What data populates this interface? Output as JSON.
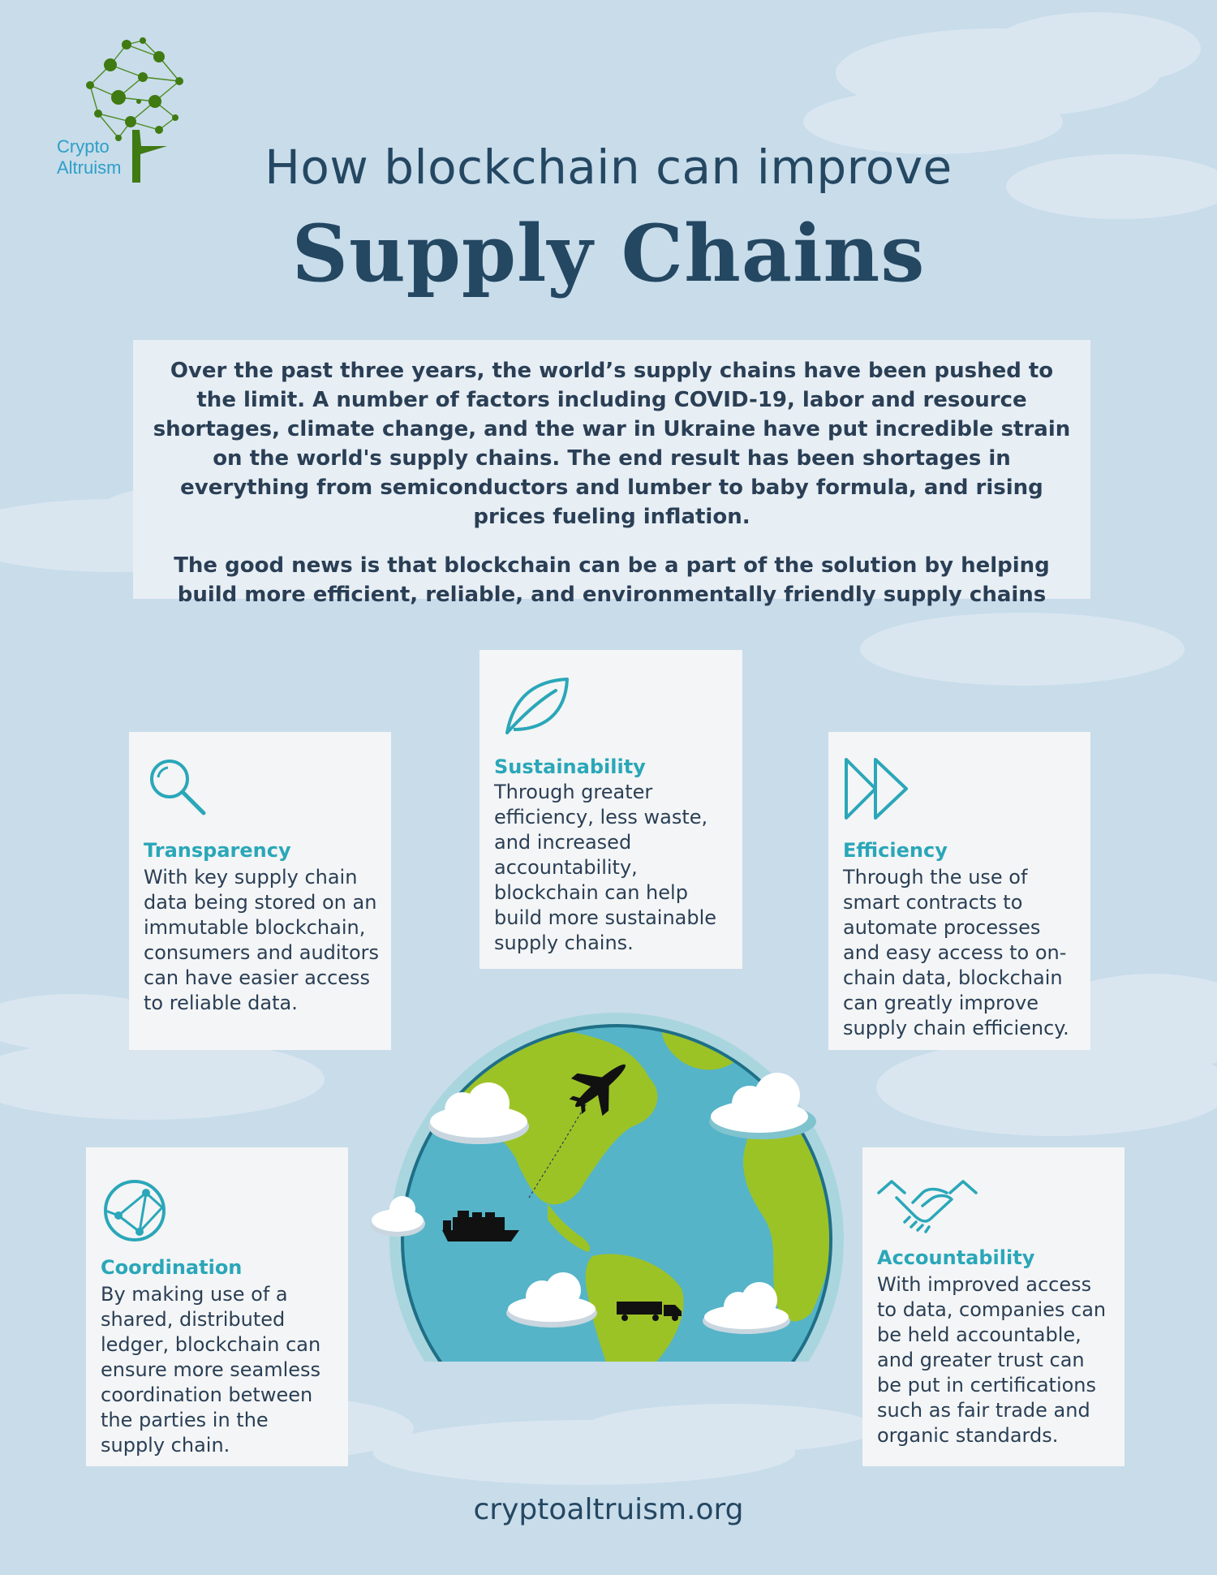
{
  "logo": {
    "line1": "Crypto",
    "line2": "Altruism"
  },
  "header": {
    "subtitle": "How blockchain can improve",
    "title": "Supply Chains"
  },
  "intro": {
    "paragraph1": "Over the past three years, the world’s supply chains have been pushed to the limit. A number of factors including COVID-19, labor and resource shortages, climate change, and the war in Ukraine have put incredible strain on the world's supply chains. The end result has been shortages in everything from semiconductors and lumber to baby formula, and rising prices fueling inflation.",
    "paragraph2": "The good news is that blockchain can be a part of the solution by helping build more efficient, reliable, and environmentally friendly supply chains"
  },
  "cards": {
    "transparency": {
      "icon": "magnifier-icon",
      "title": "Transparency",
      "body": "With key supply chain data being stored on an immutable blockchain, consumers and auditors can have easier access to reliable data."
    },
    "sustainability": {
      "icon": "leaf-icon",
      "title": "Sustainability",
      "body": "Through greater efficiency, less waste, and increased accountability, blockchain can help build more sustainable supply chains."
    },
    "efficiency": {
      "icon": "fast-forward-icon",
      "title": "Efficiency",
      "body": "Through the use of smart contracts to automate processes and easy access to on-chain data, blockchain can greatly improve supply chain efficiency."
    },
    "coordination": {
      "icon": "network-globe-icon",
      "title": "Coordination",
      "body": "By making use of a shared, distributed ledger, blockchain can ensure more seamless coordination between the parties in the supply chain."
    },
    "accountability": {
      "icon": "handshake-icon",
      "title": "Accountability",
      "body": "With improved access to data, companies can be held accountable, and greater trust can be put in certifications such as fair trade and organic standards."
    }
  },
  "footer": {
    "url": "cryptoaltruism.org"
  },
  "colors": {
    "background": "#c8dcea",
    "navy": "#244762",
    "teal": "#2aa7b9",
    "card": "#f4f5f6",
    "ocean": "#55b4c8",
    "land": "#9cc326"
  }
}
